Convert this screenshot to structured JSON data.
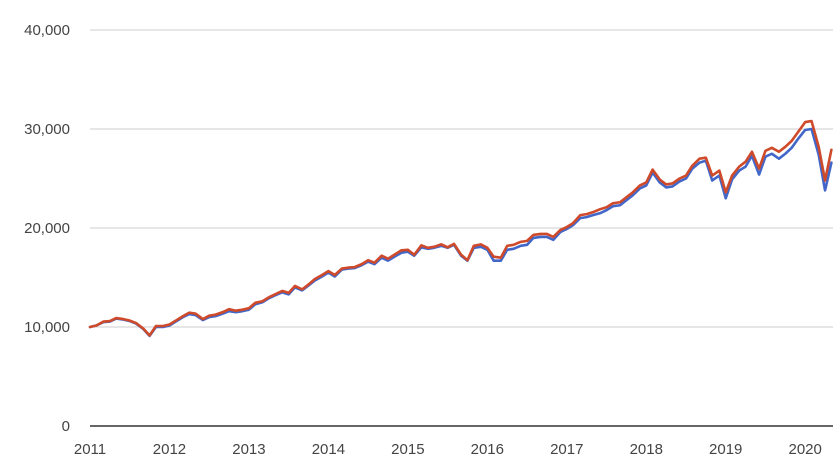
{
  "chart_data": {
    "type": "line",
    "title": "",
    "xlabel": "",
    "ylabel": "",
    "ylim": [
      0,
      40000
    ],
    "xlim": [
      2011.0,
      2020.35
    ],
    "grid": true,
    "legend": "none",
    "y_ticks": [
      {
        "value": 0,
        "label": "0"
      },
      {
        "value": 10000,
        "label": "10,000"
      },
      {
        "value": 20000,
        "label": "20,000"
      },
      {
        "value": 30000,
        "label": "30,000"
      },
      {
        "value": 40000,
        "label": "40,000"
      }
    ],
    "x_ticks": [
      {
        "value": 2011,
        "label": "2011"
      },
      {
        "value": 2012,
        "label": "2012"
      },
      {
        "value": 2013,
        "label": "2013"
      },
      {
        "value": 2014,
        "label": "2014"
      },
      {
        "value": 2015,
        "label": "2015"
      },
      {
        "value": 2016,
        "label": "2016"
      },
      {
        "value": 2017,
        "label": "2017"
      },
      {
        "value": 2018,
        "label": "2018"
      },
      {
        "value": 2019,
        "label": "2019"
      },
      {
        "value": 2020,
        "label": "2020"
      }
    ],
    "series": [
      {
        "color": "#4267c9",
        "points": [
          [
            2011.0,
            10000
          ],
          [
            2011.08,
            10150
          ],
          [
            2011.17,
            10500
          ],
          [
            2011.25,
            10550
          ],
          [
            2011.33,
            10850
          ],
          [
            2011.42,
            10750
          ],
          [
            2011.5,
            10600
          ],
          [
            2011.58,
            10350
          ],
          [
            2011.67,
            9800
          ],
          [
            2011.75,
            9100
          ],
          [
            2011.83,
            10000
          ],
          [
            2011.92,
            10000
          ],
          [
            2012.0,
            10150
          ],
          [
            2012.08,
            10550
          ],
          [
            2012.17,
            11000
          ],
          [
            2012.25,
            11300
          ],
          [
            2012.33,
            11200
          ],
          [
            2012.42,
            10700
          ],
          [
            2012.5,
            11000
          ],
          [
            2012.58,
            11100
          ],
          [
            2012.67,
            11350
          ],
          [
            2012.75,
            11600
          ],
          [
            2012.83,
            11500
          ],
          [
            2012.92,
            11600
          ],
          [
            2013.0,
            11750
          ],
          [
            2013.08,
            12300
          ],
          [
            2013.17,
            12500
          ],
          [
            2013.25,
            12900
          ],
          [
            2013.33,
            13200
          ],
          [
            2013.42,
            13500
          ],
          [
            2013.5,
            13300
          ],
          [
            2013.58,
            14000
          ],
          [
            2013.67,
            13700
          ],
          [
            2013.75,
            14200
          ],
          [
            2013.83,
            14700
          ],
          [
            2013.92,
            15100
          ],
          [
            2014.0,
            15500
          ],
          [
            2014.08,
            15100
          ],
          [
            2014.17,
            15800
          ],
          [
            2014.25,
            15900
          ],
          [
            2014.33,
            15950
          ],
          [
            2014.42,
            16250
          ],
          [
            2014.5,
            16600
          ],
          [
            2014.58,
            16350
          ],
          [
            2014.67,
            17000
          ],
          [
            2014.75,
            16700
          ],
          [
            2014.83,
            17100
          ],
          [
            2014.92,
            17500
          ],
          [
            2015.0,
            17600
          ],
          [
            2015.08,
            17200
          ],
          [
            2015.17,
            18050
          ],
          [
            2015.25,
            17900
          ],
          [
            2015.33,
            18000
          ],
          [
            2015.42,
            18200
          ],
          [
            2015.5,
            18000
          ],
          [
            2015.58,
            18300
          ],
          [
            2015.67,
            17200
          ],
          [
            2015.75,
            16700
          ],
          [
            2015.83,
            18000
          ],
          [
            2015.92,
            18100
          ],
          [
            2016.0,
            17800
          ],
          [
            2016.08,
            16700
          ],
          [
            2016.17,
            16700
          ],
          [
            2016.25,
            17800
          ],
          [
            2016.33,
            17900
          ],
          [
            2016.42,
            18200
          ],
          [
            2016.5,
            18300
          ],
          [
            2016.58,
            19000
          ],
          [
            2016.67,
            19100
          ],
          [
            2016.75,
            19100
          ],
          [
            2016.83,
            18800
          ],
          [
            2016.92,
            19600
          ],
          [
            2017.0,
            19900
          ],
          [
            2017.08,
            20300
          ],
          [
            2017.17,
            21000
          ],
          [
            2017.25,
            21100
          ],
          [
            2017.33,
            21300
          ],
          [
            2017.42,
            21500
          ],
          [
            2017.5,
            21800
          ],
          [
            2017.58,
            22200
          ],
          [
            2017.67,
            22300
          ],
          [
            2017.75,
            22800
          ],
          [
            2017.83,
            23300
          ],
          [
            2017.92,
            24000
          ],
          [
            2018.0,
            24300
          ],
          [
            2018.08,
            25600
          ],
          [
            2018.17,
            24600
          ],
          [
            2018.25,
            24100
          ],
          [
            2018.33,
            24200
          ],
          [
            2018.42,
            24700
          ],
          [
            2018.5,
            25000
          ],
          [
            2018.58,
            26000
          ],
          [
            2018.67,
            26600
          ],
          [
            2018.75,
            26800
          ],
          [
            2018.83,
            24800
          ],
          [
            2018.92,
            25300
          ],
          [
            2019.0,
            23000
          ],
          [
            2019.08,
            24900
          ],
          [
            2019.17,
            25800
          ],
          [
            2019.25,
            26200
          ],
          [
            2019.33,
            27300
          ],
          [
            2019.42,
            25400
          ],
          [
            2019.5,
            27200
          ],
          [
            2019.58,
            27500
          ],
          [
            2019.67,
            27000
          ],
          [
            2019.75,
            27500
          ],
          [
            2019.83,
            28100
          ],
          [
            2019.92,
            29100
          ],
          [
            2020.0,
            29900
          ],
          [
            2020.08,
            30000
          ],
          [
            2020.17,
            27400
          ],
          [
            2020.25,
            23800
          ],
          [
            2020.33,
            26600
          ]
        ]
      },
      {
        "color": "#cf4a2a",
        "points": [
          [
            2011.0,
            10000
          ],
          [
            2011.08,
            10150
          ],
          [
            2011.17,
            10550
          ],
          [
            2011.25,
            10600
          ],
          [
            2011.33,
            10900
          ],
          [
            2011.42,
            10800
          ],
          [
            2011.5,
            10650
          ],
          [
            2011.58,
            10400
          ],
          [
            2011.67,
            9850
          ],
          [
            2011.75,
            9150
          ],
          [
            2011.83,
            10100
          ],
          [
            2011.92,
            10100
          ],
          [
            2012.0,
            10250
          ],
          [
            2012.08,
            10650
          ],
          [
            2012.17,
            11100
          ],
          [
            2012.25,
            11450
          ],
          [
            2012.33,
            11350
          ],
          [
            2012.42,
            10800
          ],
          [
            2012.5,
            11150
          ],
          [
            2012.58,
            11250
          ],
          [
            2012.67,
            11500
          ],
          [
            2012.75,
            11800
          ],
          [
            2012.83,
            11650
          ],
          [
            2012.92,
            11750
          ],
          [
            2013.0,
            11900
          ],
          [
            2013.08,
            12450
          ],
          [
            2013.17,
            12600
          ],
          [
            2013.25,
            13000
          ],
          [
            2013.33,
            13300
          ],
          [
            2013.42,
            13650
          ],
          [
            2013.5,
            13450
          ],
          [
            2013.58,
            14150
          ],
          [
            2013.67,
            13800
          ],
          [
            2013.75,
            14300
          ],
          [
            2013.83,
            14850
          ],
          [
            2013.92,
            15250
          ],
          [
            2014.0,
            15650
          ],
          [
            2014.08,
            15250
          ],
          [
            2014.17,
            15900
          ],
          [
            2014.25,
            16000
          ],
          [
            2014.33,
            16050
          ],
          [
            2014.42,
            16350
          ],
          [
            2014.5,
            16750
          ],
          [
            2014.58,
            16500
          ],
          [
            2014.67,
            17200
          ],
          [
            2014.75,
            16900
          ],
          [
            2014.83,
            17300
          ],
          [
            2014.92,
            17750
          ],
          [
            2015.0,
            17800
          ],
          [
            2015.08,
            17300
          ],
          [
            2015.17,
            18250
          ],
          [
            2015.25,
            18000
          ],
          [
            2015.33,
            18100
          ],
          [
            2015.42,
            18350
          ],
          [
            2015.5,
            18050
          ],
          [
            2015.58,
            18400
          ],
          [
            2015.67,
            17300
          ],
          [
            2015.75,
            16750
          ],
          [
            2015.83,
            18200
          ],
          [
            2015.92,
            18350
          ],
          [
            2016.0,
            18000
          ],
          [
            2016.08,
            17100
          ],
          [
            2016.17,
            17000
          ],
          [
            2016.25,
            18200
          ],
          [
            2016.33,
            18300
          ],
          [
            2016.42,
            18600
          ],
          [
            2016.5,
            18700
          ],
          [
            2016.58,
            19300
          ],
          [
            2016.67,
            19400
          ],
          [
            2016.75,
            19400
          ],
          [
            2016.83,
            19100
          ],
          [
            2016.92,
            19800
          ],
          [
            2017.0,
            20100
          ],
          [
            2017.08,
            20500
          ],
          [
            2017.17,
            21300
          ],
          [
            2017.25,
            21400
          ],
          [
            2017.33,
            21600
          ],
          [
            2017.42,
            21900
          ],
          [
            2017.5,
            22100
          ],
          [
            2017.58,
            22500
          ],
          [
            2017.67,
            22600
          ],
          [
            2017.75,
            23100
          ],
          [
            2017.83,
            23600
          ],
          [
            2017.92,
            24300
          ],
          [
            2018.0,
            24600
          ],
          [
            2018.08,
            25900
          ],
          [
            2018.17,
            24900
          ],
          [
            2018.25,
            24400
          ],
          [
            2018.33,
            24500
          ],
          [
            2018.42,
            25000
          ],
          [
            2018.5,
            25300
          ],
          [
            2018.58,
            26300
          ],
          [
            2018.67,
            27000
          ],
          [
            2018.75,
            27100
          ],
          [
            2018.83,
            25300
          ],
          [
            2018.92,
            25800
          ],
          [
            2019.0,
            23600
          ],
          [
            2019.08,
            25300
          ],
          [
            2019.17,
            26200
          ],
          [
            2019.25,
            26700
          ],
          [
            2019.33,
            27700
          ],
          [
            2019.42,
            26000
          ],
          [
            2019.5,
            27800
          ],
          [
            2019.58,
            28100
          ],
          [
            2019.67,
            27700
          ],
          [
            2019.75,
            28200
          ],
          [
            2019.83,
            28800
          ],
          [
            2019.92,
            29800
          ],
          [
            2020.0,
            30700
          ],
          [
            2020.08,
            30800
          ],
          [
            2020.17,
            28200
          ],
          [
            2020.25,
            24800
          ],
          [
            2020.33,
            27900
          ]
        ]
      }
    ]
  }
}
